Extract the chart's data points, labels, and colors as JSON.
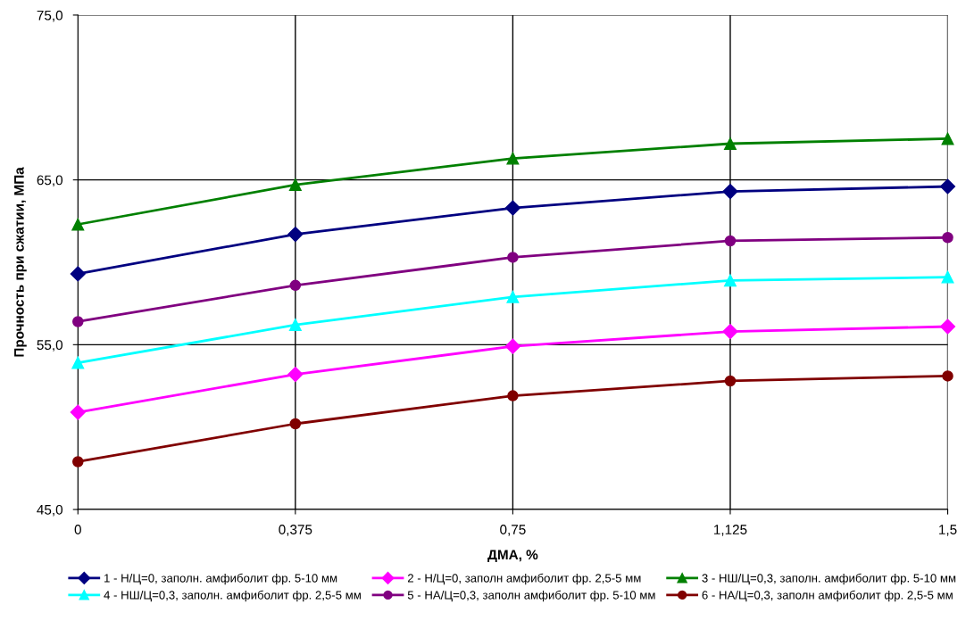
{
  "chart_data": {
    "type": "line",
    "xlabel": "ДМА, %",
    "ylabel": "Прочность при сжатии, МПа",
    "x": [
      0,
      0.375,
      0.75,
      1.125,
      1.5
    ],
    "xlim": [
      0,
      1.5
    ],
    "xticks": [
      {
        "value": 0,
        "label": "0"
      },
      {
        "value": 0.375,
        "label": "0,375"
      },
      {
        "value": 0.75,
        "label": "0,75"
      },
      {
        "value": 1.125,
        "label": "1,125"
      },
      {
        "value": 1.5,
        "label": "1,5"
      }
    ],
    "ylim": [
      45,
      75
    ],
    "yticks": [
      {
        "value": 45,
        "label": "45,0"
      },
      {
        "value": 55,
        "label": "55,0"
      },
      {
        "value": 65,
        "label": "65,0"
      },
      {
        "value": 75,
        "label": "75,0"
      }
    ],
    "grid": true,
    "legend": "bottom",
    "series": [
      {
        "name": "1 - Н/Ц=0, заполн. амфиболит фр. 5-10 мм",
        "color": "#000080",
        "marker": "diamond",
        "values": [
          59.3,
          61.7,
          63.3,
          64.3,
          64.6
        ]
      },
      {
        "name": "2 - Н/Ц=0, заполн амфиболит фр. 2,5-5 мм",
        "color": "#ff00ff",
        "marker": "diamond",
        "values": [
          50.9,
          53.2,
          54.9,
          55.8,
          56.1
        ]
      },
      {
        "name": "3 - НШ/Ц=0,3, заполн. амфиболит фр. 5-10 мм",
        "color": "#008000",
        "marker": "triangle",
        "values": [
          62.3,
          64.7,
          66.3,
          67.2,
          67.5
        ]
      },
      {
        "name": "4 - НШ/Ц=0,3, заполн. амфиболит фр. 2,5-5 мм",
        "color": "#00ffff",
        "marker": "triangle",
        "values": [
          53.9,
          56.2,
          57.9,
          58.9,
          59.1
        ]
      },
      {
        "name": "5 - НА/Ц=0,3, заполн амфиболит фр. 5-10 мм",
        "color": "#800080",
        "marker": "circle",
        "values": [
          56.4,
          58.6,
          60.3,
          61.3,
          61.5
        ]
      },
      {
        "name": "6 - НА/Ц=0,3, заполн амфиболит фр. 2,5-5 мм",
        "color": "#800000",
        "marker": "circle",
        "values": [
          47.9,
          50.2,
          51.9,
          52.8,
          53.1
        ]
      }
    ]
  }
}
